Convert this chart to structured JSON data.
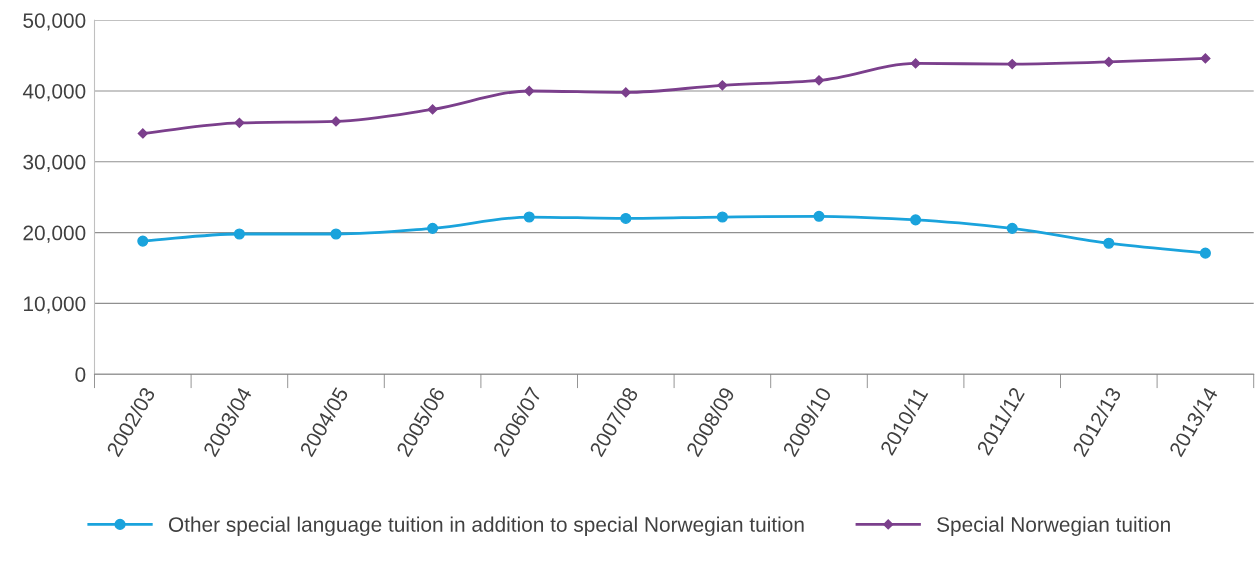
{
  "chart_data": {
    "type": "line",
    "categories": [
      "2002/03",
      "2003/04",
      "2004/05",
      "2005/06",
      "2006/07",
      "2007/08",
      "2008/09",
      "2009/10",
      "2010/11",
      "2011/12",
      "2012/13",
      "2013/14"
    ],
    "series": [
      {
        "name": "Other special language tuition in addition to special Norwegian tuition",
        "color": "#1aa3dc",
        "marker": "circle",
        "values": [
          18800,
          19800,
          19800,
          20600,
          22200,
          22000,
          22200,
          22300,
          21800,
          20600,
          18500,
          17100
        ]
      },
      {
        "name": "Special Norwegian tuition",
        "color": "#7b3f8c",
        "marker": "diamond",
        "values": [
          34000,
          35500,
          35700,
          37400,
          40000,
          39800,
          40800,
          41500,
          43900,
          43800,
          44100,
          44600
        ]
      }
    ],
    "ylim": [
      0,
      50000
    ],
    "yticks": [
      {
        "value": 0,
        "label": "0"
      },
      {
        "value": 10000,
        "label": "10,000"
      },
      {
        "value": 20000,
        "label": "20,000"
      },
      {
        "value": 30000,
        "label": "30,000"
      },
      {
        "value": 40000,
        "label": "40,000"
      },
      {
        "value": 50000,
        "label": "50,000"
      }
    ],
    "grid": "y",
    "legend": "bottom",
    "line_style": "solid"
  }
}
